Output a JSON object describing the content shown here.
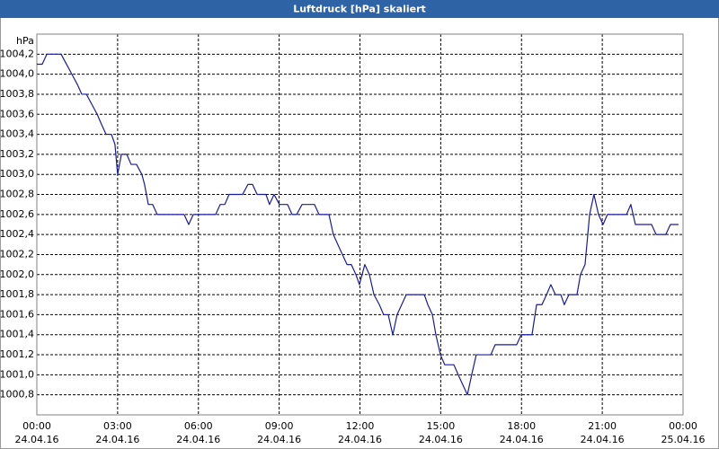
{
  "chart_data": {
    "type": "line",
    "title": "Luftdruck [hPa] skaliert",
    "y_unit": "hPa",
    "color": "#1a1aa0",
    "grid": true,
    "x": [
      0,
      0.2,
      0.37,
      0.9,
      1.1,
      1.3,
      1.5,
      1.67,
      1.84,
      2.04,
      2.24,
      2.4,
      2.57,
      2.77,
      2.9,
      3.0,
      3.14,
      3.34,
      3.5,
      3.7,
      3.9,
      4.0,
      4.14,
      4.3,
      4.47,
      5.47,
      5.64,
      5.81,
      6.64,
      6.81,
      6.98,
      7.14,
      7.64,
      7.84,
      8.01,
      8.18,
      8.51,
      8.64,
      8.81,
      9.01,
      9.31,
      9.48,
      9.65,
      9.85,
      10.31,
      10.48,
      10.85,
      11.01,
      11.18,
      11.35,
      11.52,
      11.68,
      11.85,
      11.98,
      12.18,
      12.35,
      12.52,
      12.72,
      12.88,
      13.05,
      13.22,
      13.38,
      13.55,
      13.72,
      14.39,
      14.52,
      14.69,
      14.82,
      14.99,
      15.15,
      15.49,
      15.65,
      15.82,
      15.99,
      16.15,
      16.32,
      16.86,
      17.02,
      17.82,
      17.99,
      18.39,
      18.56,
      18.76,
      18.93,
      19.09,
      19.26,
      19.46,
      19.59,
      19.76,
      20.06,
      20.19,
      20.36,
      20.53,
      20.69,
      20.86,
      21.03,
      21.19,
      21.9,
      22.06,
      22.23,
      22.83,
      23.0,
      23.36,
      23.53,
      23.83
    ],
    "values": [
      1004.1,
      1004.1,
      1004.2,
      1004.2,
      1004.1,
      1004.0,
      1003.9,
      1003.8,
      1003.8,
      1003.7,
      1003.6,
      1003.5,
      1003.4,
      1003.4,
      1003.3,
      1003.0,
      1003.2,
      1003.2,
      1003.1,
      1003.1,
      1003.0,
      1002.9,
      1002.7,
      1002.7,
      1002.6,
      1002.6,
      1002.5,
      1002.6,
      1002.6,
      1002.7,
      1002.7,
      1002.8,
      1002.8,
      1002.9,
      1002.9,
      1002.8,
      1002.8,
      1002.7,
      1002.8,
      1002.7,
      1002.7,
      1002.6,
      1002.6,
      1002.7,
      1002.7,
      1002.6,
      1002.6,
      1002.4,
      1002.3,
      1002.2,
      1002.1,
      1002.1,
      1002.0,
      1001.9,
      1002.1,
      1002.0,
      1001.8,
      1001.7,
      1001.6,
      1001.6,
      1001.4,
      1001.6,
      1001.7,
      1001.8,
      1001.8,
      1001.7,
      1001.6,
      1001.4,
      1001.2,
      1001.1,
      1001.1,
      1001.0,
      1000.9,
      1000.8,
      1001.0,
      1001.2,
      1001.2,
      1001.3,
      1001.3,
      1001.4,
      1001.4,
      1001.7,
      1001.7,
      1001.8,
      1001.9,
      1001.8,
      1001.8,
      1001.7,
      1001.8,
      1001.8,
      1002.0,
      1002.1,
      1002.6,
      1002.8,
      1002.6,
      1002.5,
      1002.6,
      1002.6,
      1002.7,
      1002.5,
      1002.5,
      1002.4,
      1002.4,
      1002.5,
      1002.5
    ],
    "xlim": [
      0,
      24
    ],
    "xticks": [
      {
        "value": 0,
        "label": "00:00"
      },
      {
        "value": 3,
        "label": "03:00"
      },
      {
        "value": 6,
        "label": "06:00"
      },
      {
        "value": 9,
        "label": "09:00"
      },
      {
        "value": 12,
        "label": "12:00"
      },
      {
        "value": 15,
        "label": "15:00"
      },
      {
        "value": 18,
        "label": "18:00"
      },
      {
        "value": 21,
        "label": "21:00"
      },
      {
        "value": 24,
        "label": "00:00"
      }
    ],
    "xtick_dates": [
      "24.04.16",
      "24.04.16",
      "24.04.16",
      "24.04.16",
      "24.04.16",
      "24.04.16",
      "24.04.16",
      "24.04.16",
      "25.04.16"
    ],
    "ylim": [
      1000.6,
      1004.4
    ],
    "yticks": [
      {
        "value": 1000.8,
        "label": "1000,8"
      },
      {
        "value": 1001.0,
        "label": "1001,0"
      },
      {
        "value": 1001.2,
        "label": "1001,2"
      },
      {
        "value": 1001.4,
        "label": "1001,4"
      },
      {
        "value": 1001.6,
        "label": "1001,6"
      },
      {
        "value": 1001.8,
        "label": "1001,8"
      },
      {
        "value": 1002.0,
        "label": "1002,0"
      },
      {
        "value": 1002.2,
        "label": "1002,2"
      },
      {
        "value": 1002.4,
        "label": "1002,4"
      },
      {
        "value": 1002.6,
        "label": "1002,6"
      },
      {
        "value": 1002.8,
        "label": "1002,8"
      },
      {
        "value": 1003.0,
        "label": "1003,0"
      },
      {
        "value": 1003.2,
        "label": "1003,2"
      },
      {
        "value": 1003.4,
        "label": "1003,4"
      },
      {
        "value": 1003.6,
        "label": "1003,6"
      },
      {
        "value": 1003.8,
        "label": "1003,8"
      },
      {
        "value": 1004.0,
        "label": "1004,0"
      },
      {
        "value": 1004.2,
        "label": "1004,2"
      }
    ]
  }
}
